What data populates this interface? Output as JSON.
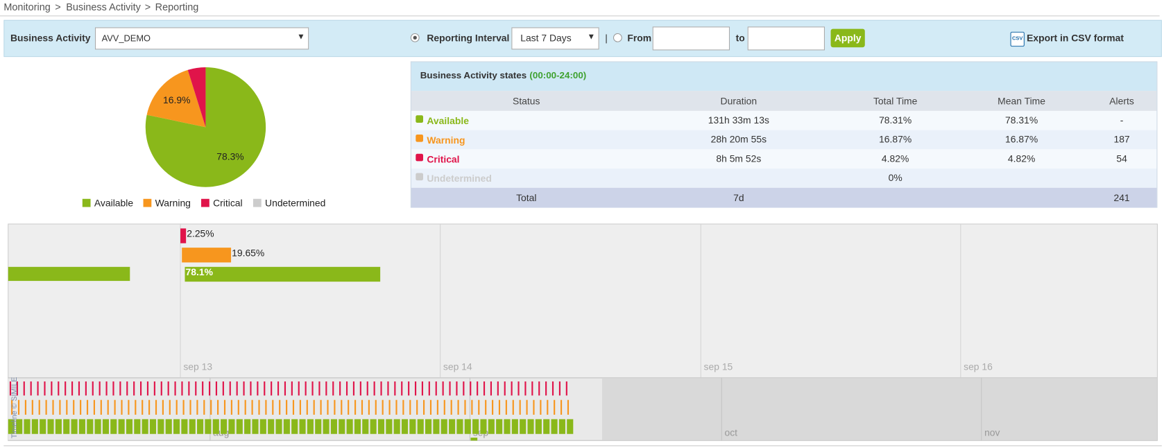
{
  "breadcrumb": {
    "items": [
      "Monitoring",
      "Business Activity",
      "Reporting"
    ],
    "separator": ">"
  },
  "toolbar": {
    "business_activity_label": "Business Activity",
    "business_activity_value": "AVV_DEMO",
    "interval_label": "Reporting Interval",
    "interval_value": "Last 7 Days",
    "divider": "|",
    "from_label": "From",
    "to_label": "to",
    "apply": "Apply",
    "csv_icon": "CSV",
    "export": "Export in CSV format"
  },
  "pie": {
    "slices": [
      {
        "name": "Available",
        "color": "#8ab81a",
        "value": 78.3,
        "label": "78.3%"
      },
      {
        "name": "Warning",
        "color": "#f7961e",
        "value": 16.9,
        "label": "16.9%"
      },
      {
        "name": "Critical",
        "color": "#e0144a",
        "value": 4.8
      },
      {
        "name": "Undetermined",
        "color": "#cccccc",
        "value": 0
      }
    ]
  },
  "table": {
    "title": "Business Activity states",
    "title_range": "(00:00-24:00)",
    "columns": [
      "Status",
      "Duration",
      "Total Time",
      "Mean Time",
      "Alerts"
    ],
    "row_colors": [
      "#8ab81a",
      "#f7961e",
      "#e0144a",
      "#cccccc"
    ],
    "rows": [
      [
        "Available",
        "131h 33m 13s",
        "78.31%",
        "78.31%",
        "-"
      ],
      [
        "Warning",
        "28h 20m 55s",
        "16.87%",
        "16.87%",
        "187"
      ],
      [
        "Critical",
        "8h 5m 52s",
        "4.82%",
        "4.82%",
        "54"
      ],
      [
        "Undetermined",
        null,
        "0%",
        null,
        null
      ]
    ],
    "total": [
      "Total",
      "7d",
      null,
      null,
      "241"
    ]
  },
  "timeline": {
    "bars": [
      {
        "label": "2.25%",
        "value": 2.25,
        "color": "#e0144a"
      },
      {
        "label": "19.65%",
        "value": 19.65,
        "color": "#f7961e"
      },
      {
        "label": "78.1%",
        "value": 78.1,
        "color": "#8ab81a"
      }
    ],
    "dates": [
      "sep 13",
      "sep 14",
      "sep 15",
      "sep 16"
    ],
    "overview_dates": [
      "aug",
      "sep",
      "oct",
      "nov"
    ],
    "credit": "Timeline © SIMILE"
  }
}
